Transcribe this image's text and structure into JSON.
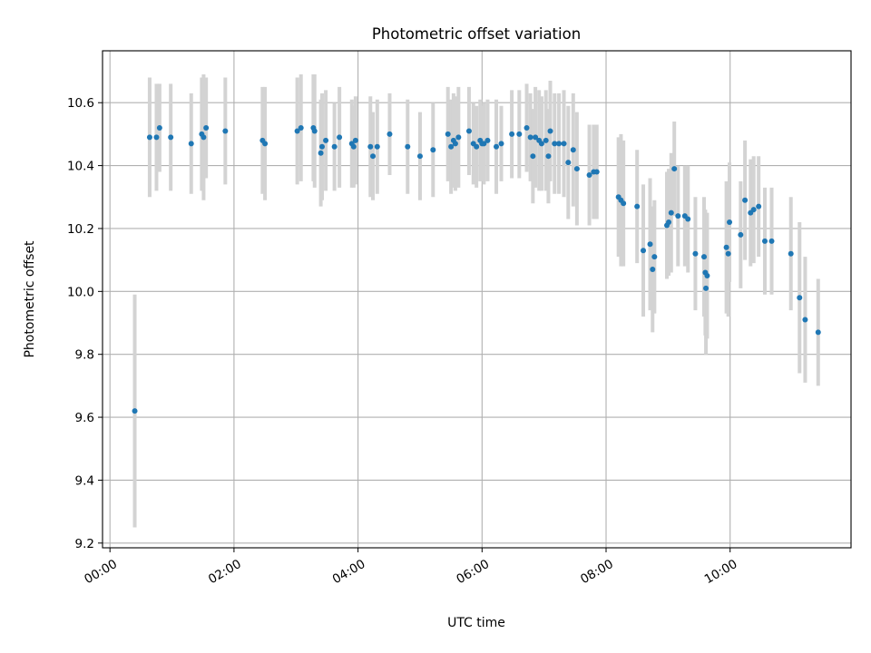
{
  "chart_data": {
    "type": "scatter",
    "title": "Photometric offset variation",
    "xlabel": "UTC time",
    "ylabel": "Photometric offset",
    "x_unit": "hours",
    "xlim": [
      -0.12,
      11.95
    ],
    "ylim": [
      9.185,
      10.765
    ],
    "x_ticks": [
      {
        "value": 0,
        "label": "00:00"
      },
      {
        "value": 2,
        "label": "02:00"
      },
      {
        "value": 4,
        "label": "04:00"
      },
      {
        "value": 6,
        "label": "06:00"
      },
      {
        "value": 8,
        "label": "08:00"
      },
      {
        "value": 10,
        "label": "10:00"
      }
    ],
    "y_ticks": [
      {
        "value": 9.2,
        "label": "9.2"
      },
      {
        "value": 9.4,
        "label": "9.4"
      },
      {
        "value": 9.6,
        "label": "9.6"
      },
      {
        "value": 9.8,
        "label": "9.8"
      },
      {
        "value": 10.0,
        "label": "10.0"
      },
      {
        "value": 10.2,
        "label": "10.2"
      },
      {
        "value": 10.4,
        "label": "10.4"
      },
      {
        "value": 10.6,
        "label": "10.6"
      }
    ],
    "grid": true,
    "colors": {
      "points": "#1f77b4",
      "errorbars": "#d3d3d3",
      "grid": "#b0b0b0"
    },
    "series": [
      {
        "x": [
          0.4,
          0.64,
          0.75,
          0.8,
          0.98,
          1.31,
          1.48,
          1.51,
          1.55,
          1.86,
          2.46,
          2.5,
          3.02,
          3.08,
          3.28,
          3.3,
          3.4,
          3.42,
          3.48,
          3.62,
          3.7,
          3.9,
          3.93,
          3.96,
          4.2,
          4.24,
          4.31,
          4.51,
          4.8,
          5.0,
          5.21,
          5.45,
          5.5,
          5.54,
          5.57,
          5.62,
          5.79,
          5.86,
          5.91,
          5.97,
          6.0,
          6.03,
          6.09,
          6.23,
          6.31,
          6.48,
          6.6,
          6.72,
          6.78,
          6.82,
          6.86,
          6.92,
          6.96,
          7.03,
          7.07,
          7.1,
          7.17,
          7.24,
          7.32,
          7.39,
          7.47,
          7.53,
          7.73,
          7.8,
          7.85,
          8.2,
          8.24,
          8.28,
          8.5,
          8.6,
          8.71,
          8.75,
          8.78,
          8.98,
          9.01,
          9.05,
          9.1,
          9.16,
          9.27,
          9.32,
          9.44,
          9.58,
          9.6,
          9.61,
          9.63,
          9.94,
          9.97,
          9.99,
          10.17,
          10.24,
          10.33,
          10.38,
          10.46,
          10.56,
          10.67,
          10.98,
          11.12,
          11.21,
          11.42
        ],
        "y": [
          9.62,
          10.49,
          10.49,
          10.52,
          10.49,
          10.47,
          10.5,
          10.49,
          10.52,
          10.51,
          10.48,
          10.47,
          10.51,
          10.52,
          10.52,
          10.51,
          10.44,
          10.46,
          10.48,
          10.46,
          10.49,
          10.47,
          10.46,
          10.48,
          10.46,
          10.43,
          10.46,
          10.5,
          10.46,
          10.43,
          10.45,
          10.5,
          10.46,
          10.48,
          10.47,
          10.49,
          10.51,
          10.47,
          10.46,
          10.48,
          10.47,
          10.47,
          10.48,
          10.46,
          10.47,
          10.5,
          10.5,
          10.52,
          10.49,
          10.43,
          10.49,
          10.48,
          10.47,
          10.48,
          10.43,
          10.51,
          10.47,
          10.47,
          10.47,
          10.41,
          10.45,
          10.39,
          10.37,
          10.38,
          10.38,
          10.3,
          10.29,
          10.28,
          10.27,
          10.13,
          10.15,
          10.07,
          10.11,
          10.21,
          10.22,
          10.25,
          10.39,
          10.24,
          10.24,
          10.23,
          10.12,
          10.11,
          10.06,
          10.01,
          10.05,
          10.14,
          10.12,
          10.22,
          10.18,
          10.29,
          10.25,
          10.26,
          10.27,
          10.16,
          10.16,
          10.12,
          9.98,
          9.91,
          9.87
        ],
        "err": [
          0.37,
          0.19,
          0.17,
          0.14,
          0.17,
          0.16,
          0.18,
          0.2,
          0.16,
          0.17,
          0.17,
          0.18,
          0.17,
          0.17,
          0.17,
          0.18,
          0.17,
          0.17,
          0.16,
          0.14,
          0.16,
          0.14,
          0.13,
          0.14,
          0.16,
          0.14,
          0.15,
          0.13,
          0.15,
          0.14,
          0.15,
          0.15,
          0.15,
          0.15,
          0.15,
          0.16,
          0.14,
          0.13,
          0.13,
          0.13,
          0.12,
          0.13,
          0.13,
          0.15,
          0.12,
          0.14,
          0.14,
          0.14,
          0.14,
          0.15,
          0.16,
          0.16,
          0.15,
          0.16,
          0.15,
          0.16,
          0.16,
          0.16,
          0.17,
          0.18,
          0.18,
          0.18,
          0.16,
          0.15,
          0.15,
          0.19,
          0.21,
          0.2,
          0.18,
          0.21,
          0.21,
          0.2,
          0.18,
          0.17,
          0.17,
          0.19,
          0.15,
          0.16,
          0.16,
          0.17,
          0.18,
          0.19,
          0.2,
          0.21,
          0.2,
          0.21,
          0.2,
          0.19,
          0.17,
          0.19,
          0.17,
          0.17,
          0.16,
          0.17,
          0.17,
          0.18,
          0.24,
          0.2,
          0.17
        ]
      }
    ]
  }
}
